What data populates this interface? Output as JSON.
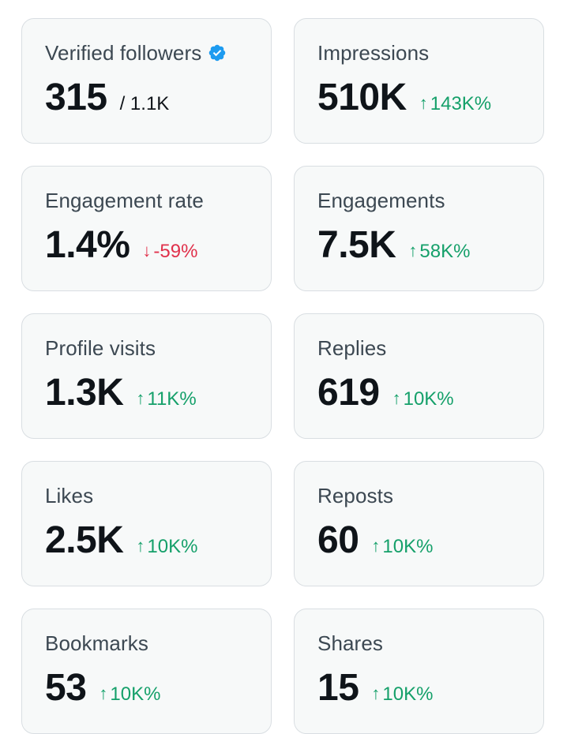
{
  "colors": {
    "card_background": "#f7f9f9",
    "card_border": "#d9dee2",
    "label": "#3c4852",
    "value": "#0f1419",
    "positive": "#15a06a",
    "negative": "#e0314b",
    "verified_badge": "#1d9bf0"
  },
  "metrics": [
    {
      "label": "Verified followers",
      "value": "315",
      "total": "/ 1.1K",
      "icon": "verified-badge-icon"
    },
    {
      "label": "Impressions",
      "value": "510K",
      "change": "143K%",
      "direction": "up",
      "icon": "arrow-up-icon"
    },
    {
      "label": "Engagement rate",
      "value": "1.4%",
      "change": "-59%",
      "direction": "down",
      "icon": "arrow-down-icon"
    },
    {
      "label": "Engagements",
      "value": "7.5K",
      "change": "58K%",
      "direction": "up",
      "icon": "arrow-up-icon"
    },
    {
      "label": "Profile visits",
      "value": "1.3K",
      "change": "11K%",
      "direction": "up",
      "icon": "arrow-up-icon"
    },
    {
      "label": "Replies",
      "value": "619",
      "change": "10K%",
      "direction": "up",
      "icon": "arrow-up-icon"
    },
    {
      "label": "Likes",
      "value": "2.5K",
      "change": "10K%",
      "direction": "up",
      "icon": "arrow-up-icon"
    },
    {
      "label": "Reposts",
      "value": "60",
      "change": "10K%",
      "direction": "up",
      "icon": "arrow-up-icon"
    },
    {
      "label": "Bookmarks",
      "value": "53",
      "change": "10K%",
      "direction": "up",
      "icon": "arrow-up-icon"
    },
    {
      "label": "Shares",
      "value": "15",
      "change": "10K%",
      "direction": "up",
      "icon": "arrow-up-icon"
    }
  ]
}
